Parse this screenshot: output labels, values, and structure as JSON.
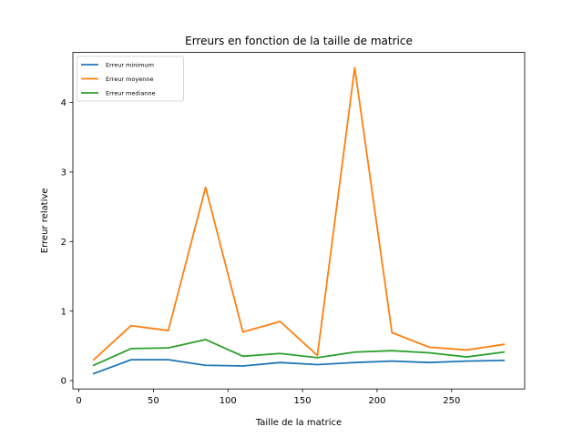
{
  "chart_data": {
    "type": "line",
    "title": "Erreurs en fonction de la taille de matrice",
    "xlabel": "Taille de la matrice",
    "ylabel": "Erreur relative",
    "xlim": [
      -4,
      299
    ],
    "ylim": [
      -0.12,
      4.72
    ],
    "xticks": [
      0,
      50,
      100,
      150,
      200,
      250
    ],
    "yticks": [
      0,
      1,
      2,
      3,
      4
    ],
    "grid": false,
    "legend_position": "upper-left",
    "x": [
      10,
      35,
      60,
      85,
      110,
      135,
      160,
      185,
      210,
      235,
      260,
      285
    ],
    "series": [
      {
        "name": "Erreur minimum",
        "color": "#1f77b4",
        "values": [
          0.1,
          0.3,
          0.3,
          0.22,
          0.21,
          0.26,
          0.23,
          0.26,
          0.28,
          0.26,
          0.28,
          0.29
        ]
      },
      {
        "name": "Erreur moyenne",
        "color": "#ff7f0e",
        "values": [
          0.3,
          0.79,
          0.72,
          2.78,
          0.7,
          0.85,
          0.36,
          4.5,
          0.69,
          0.48,
          0.44,
          0.52
        ]
      },
      {
        "name": "Erreur medianne",
        "color": "#2ca02c",
        "values": [
          0.22,
          0.46,
          0.47,
          0.59,
          0.35,
          0.39,
          0.33,
          0.41,
          0.43,
          0.4,
          0.34,
          0.41
        ]
      }
    ]
  }
}
